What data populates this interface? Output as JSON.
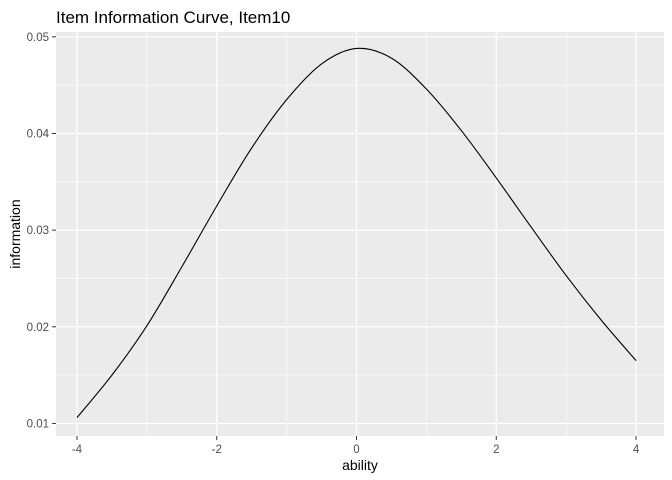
{
  "chart_data": {
    "type": "line",
    "title": "Item Information Curve, Item10",
    "xlabel": "ability",
    "ylabel": "information",
    "xlim": [
      -4.3,
      4.4
    ],
    "ylim": [
      0.0087,
      0.0505
    ],
    "x_ticks": [
      -4,
      -2,
      0,
      2,
      4
    ],
    "y_ticks": [
      0.01,
      0.02,
      0.03,
      0.04,
      0.05
    ],
    "x_tick_labels": [
      "-4",
      "-2",
      "0",
      "2",
      "4"
    ],
    "y_tick_labels": [
      "0.01",
      "0.02",
      "0.03",
      "0.04",
      "0.05"
    ],
    "grid": true,
    "panel_color": "#ebebeb",
    "grid_color": "#ffffff",
    "line_color": "#000000",
    "series": [
      {
        "x": [
          -4,
          -3.5,
          -3,
          -2.5,
          -2,
          -1.5,
          -1,
          -0.5,
          0,
          0.5,
          1,
          1.5,
          2,
          2.5,
          3,
          3.5,
          4
        ],
        "y": [
          0.0106,
          0.015,
          0.0201,
          0.0262,
          0.0325,
          0.0385,
          0.0435,
          0.0472,
          0.0488,
          0.0478,
          0.0446,
          0.0403,
          0.0354,
          0.0303,
          0.0253,
          0.0207,
          0.0165
        ]
      }
    ]
  }
}
